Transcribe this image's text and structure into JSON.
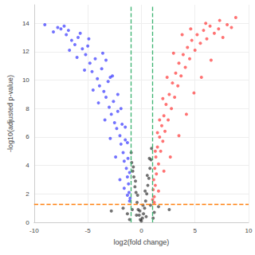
{
  "chart_data": {
    "type": "scatter",
    "x_label": "log2(fold change)",
    "y_label": "-log10(adjusted p-value)",
    "xlim": [
      -10,
      10
    ],
    "xticks": [
      -10,
      -5,
      0,
      5,
      10
    ],
    "ylim": [
      0,
      15.3
    ],
    "yticks": [
      0,
      2,
      4,
      6,
      8,
      10,
      12,
      14
    ],
    "grid": true,
    "marker": "circle",
    "series": [
      {
        "color": "#0000ff",
        "values": [
          [
            -9.0,
            13.9
          ],
          [
            -7.8,
            13.7
          ],
          [
            -7.5,
            13.6
          ],
          [
            -7.2,
            13.8
          ],
          [
            -7.0,
            13.2
          ],
          [
            -6.8,
            13.5
          ],
          [
            -6.5,
            12.8
          ],
          [
            -6.2,
            12.5
          ],
          [
            -5.9,
            13.0
          ],
          [
            -5.5,
            12.2
          ],
          [
            -5.2,
            11.8
          ],
          [
            -5.0,
            12.4
          ],
          [
            -4.8,
            11.2
          ],
          [
            -4.6,
            10.6
          ],
          [
            -4.3,
            11.5
          ],
          [
            -4.1,
            10.1
          ],
          [
            -3.9,
            9.6
          ],
          [
            -3.7,
            10.8
          ],
          [
            -3.5,
            9.2
          ],
          [
            -3.3,
            8.8
          ],
          [
            -3.1,
            9.9
          ],
          [
            -3.0,
            8.1
          ],
          [
            -2.8,
            7.6
          ],
          [
            -2.6,
            8.5
          ],
          [
            -2.5,
            7.0
          ],
          [
            -2.3,
            6.6
          ],
          [
            -2.2,
            7.8
          ],
          [
            -2.0,
            6.1
          ],
          [
            -1.9,
            5.5
          ],
          [
            -1.8,
            6.9
          ],
          [
            -1.7,
            4.9
          ],
          [
            -1.6,
            4.3
          ],
          [
            -1.5,
            5.8
          ],
          [
            -1.4,
            3.8
          ],
          [
            -1.3,
            3.2
          ],
          [
            -1.25,
            4.5
          ],
          [
            -1.2,
            2.7
          ],
          [
            -1.15,
            2.1
          ],
          [
            -1.1,
            3.5
          ],
          [
            -1.05,
            1.7
          ],
          [
            -1.1,
            1.5
          ],
          [
            -1.3,
            1.9
          ],
          [
            -1.6,
            2.4
          ],
          [
            -2.0,
            3.0
          ],
          [
            -2.4,
            4.6
          ],
          [
            -2.9,
            5.9
          ],
          [
            -3.4,
            7.2
          ],
          [
            -4.0,
            8.4
          ],
          [
            -4.5,
            9.3
          ],
          [
            -5.3,
            10.7
          ],
          [
            -6.0,
            11.6
          ],
          [
            -6.7,
            12.1
          ],
          [
            -8.2,
            13.4
          ],
          [
            -5.7,
            13.3
          ],
          [
            -4.9,
            12.9
          ],
          [
            -3.6,
            11.9
          ],
          [
            -2.7,
            10.3
          ],
          [
            -2.2,
            9.0
          ],
          [
            -1.9,
            8.0
          ],
          [
            -1.5,
            6.7
          ],
          [
            -1.3,
            5.6
          ],
          [
            -3.3,
            11.4
          ],
          [
            -2.9,
            10.2
          ]
        ]
      },
      {
        "color": "#ff0000",
        "values": [
          [
            1.05,
            1.6
          ],
          [
            1.1,
            2.3
          ],
          [
            1.15,
            3.0
          ],
          [
            1.2,
            1.8
          ],
          [
            1.25,
            3.8
          ],
          [
            1.3,
            2.6
          ],
          [
            1.35,
            4.6
          ],
          [
            1.4,
            3.4
          ],
          [
            1.5,
            5.3
          ],
          [
            1.6,
            4.1
          ],
          [
            1.7,
            6.0
          ],
          [
            1.8,
            5.0
          ],
          [
            1.9,
            6.8
          ],
          [
            2.0,
            5.7
          ],
          [
            2.1,
            7.5
          ],
          [
            2.2,
            6.4
          ],
          [
            2.3,
            8.3
          ],
          [
            2.5,
            7.2
          ],
          [
            2.6,
            9.0
          ],
          [
            2.8,
            8.0
          ],
          [
            2.9,
            9.8
          ],
          [
            3.1,
            8.8
          ],
          [
            3.2,
            10.5
          ],
          [
            3.4,
            9.6
          ],
          [
            3.5,
            11.2
          ],
          [
            3.7,
            10.3
          ],
          [
            3.9,
            11.8
          ],
          [
            4.1,
            10.9
          ],
          [
            4.3,
            12.3
          ],
          [
            4.5,
            11.5
          ],
          [
            4.7,
            12.8
          ],
          [
            5.0,
            12.1
          ],
          [
            5.2,
            13.2
          ],
          [
            5.5,
            12.6
          ],
          [
            5.8,
            13.5
          ],
          [
            6.1,
            12.9
          ],
          [
            6.4,
            13.8
          ],
          [
            6.8,
            13.3
          ],
          [
            7.2,
            13.6
          ],
          [
            7.6,
            13.0
          ],
          [
            8.0,
            13.9
          ],
          [
            8.4,
            13.7
          ],
          [
            8.8,
            14.4
          ],
          [
            7.3,
            14.2
          ],
          [
            6.0,
            14.0
          ],
          [
            3.0,
            11.9
          ],
          [
            2.4,
            10.2
          ],
          [
            2.0,
            8.7
          ],
          [
            1.7,
            7.2
          ],
          [
            1.5,
            6.3
          ],
          [
            1.3,
            5.0
          ],
          [
            2.7,
            4.6
          ],
          [
            3.5,
            6.1
          ],
          [
            4.2,
            7.6
          ],
          [
            4.9,
            9.1
          ],
          [
            5.6,
            10.2
          ],
          [
            6.5,
            11.4
          ],
          [
            2.1,
            3.6
          ],
          [
            1.6,
            2.2
          ],
          [
            1.2,
            1.4
          ],
          [
            3.8,
            13.2
          ],
          [
            4.6,
            13.6
          ]
        ]
      },
      {
        "color": "#000000",
        "values": [
          [
            0,
            0.1
          ],
          [
            0.1,
            0.3
          ],
          [
            -0.1,
            0.2
          ],
          [
            0.2,
            0.6
          ],
          [
            -0.2,
            0.5
          ],
          [
            0.3,
            1.0
          ],
          [
            -0.3,
            0.9
          ],
          [
            0.4,
            1.5
          ],
          [
            -0.4,
            1.4
          ],
          [
            0.5,
            2.0
          ],
          [
            -0.5,
            2.1
          ],
          [
            0.6,
            2.6
          ],
          [
            -0.6,
            2.5
          ],
          [
            0.7,
            3.1
          ],
          [
            -0.7,
            3.2
          ],
          [
            0.8,
            3.8
          ],
          [
            -0.8,
            3.6
          ],
          [
            0.9,
            4.4
          ],
          [
            -0.9,
            4.2
          ],
          [
            0.95,
            5.2
          ],
          [
            -0.95,
            4.9
          ],
          [
            0.15,
            1.2
          ],
          [
            -0.15,
            0.8
          ],
          [
            0.35,
            2.2
          ],
          [
            -0.35,
            1.9
          ],
          [
            0.55,
            3.3
          ],
          [
            -0.55,
            2.9
          ],
          [
            0.75,
            4.5
          ],
          [
            -0.75,
            3.9
          ],
          [
            1.2,
            0.7
          ],
          [
            -1.3,
            0.6
          ],
          [
            1.6,
            1.1
          ],
          [
            -1.7,
            1.0
          ],
          [
            2.6,
            0.9
          ],
          [
            -2.8,
            0.8
          ],
          [
            1.1,
            0.3
          ],
          [
            -1.1,
            0.2
          ],
          [
            0.45,
            0.4
          ],
          [
            -0.45,
            0.5
          ],
          [
            0.85,
            1.2
          ],
          [
            -0.85,
            0.9
          ]
        ]
      }
    ],
    "reference_lines": [
      {
        "x": -1,
        "color": "#3cb371",
        "line_style": "dashed"
      },
      {
        "x": 1,
        "color": "#3cb371",
        "line_style": "dashed"
      },
      {
        "y": 1.3,
        "color": "#ff7f0e",
        "line_style": "dashed"
      }
    ]
  }
}
